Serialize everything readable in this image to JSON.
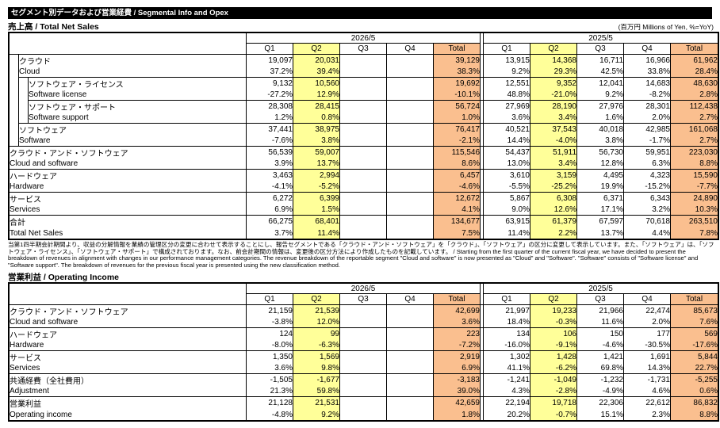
{
  "header": {
    "title_bar": "セグメント別データおよび営業経費 / Segmental Info and Opex",
    "unit_note": "(百万円 Millions of Yen, %=YoY)"
  },
  "colors": {
    "title_bar_bg": "#000000",
    "q2_highlight": "#FFFF99",
    "total_highlight": "#FABF8F",
    "border": "#000000"
  },
  "columns": {
    "year_current": "2026/5",
    "year_prior": "2025/5",
    "quarters": [
      "Q1",
      "Q2",
      "Q3",
      "Q4",
      "Total"
    ]
  },
  "net_sales": {
    "section_title": "売上高 / Total Net Sales",
    "rows": [
      {
        "jp": "クラウド",
        "en": "Cloud",
        "indent": 1,
        "values": [
          "19,097",
          "20,031",
          "",
          "",
          "39,129",
          "13,915",
          "14,368",
          "16,711",
          "16,966",
          "61,962"
        ],
        "yoy": [
          "37.2%",
          "39.4%",
          "",
          "",
          "38.3%",
          "9.2%",
          "29.3%",
          "42.5%",
          "33.8%",
          "28.4%"
        ]
      },
      {
        "jp": "ソフトウェア・ライセンス",
        "en": "Software license",
        "indent": 2,
        "values": [
          "9,132",
          "10,560",
          "",
          "",
          "19,692",
          "12,551",
          "9,352",
          "12,041",
          "14,683",
          "48,630"
        ],
        "yoy": [
          "-27.2%",
          "12.9%",
          "",
          "",
          "-10.1%",
          "48.8%",
          "-21.0%",
          "9.2%",
          "-8.2%",
          "2.8%"
        ]
      },
      {
        "jp": "ソフトウェア・サポート",
        "en": "Software support",
        "indent": 2,
        "values": [
          "28,308",
          "28,415",
          "",
          "",
          "56,724",
          "27,969",
          "28,190",
          "27,976",
          "28,301",
          "112,438"
        ],
        "yoy": [
          "1.2%",
          "0.8%",
          "",
          "",
          "1.0%",
          "3.6%",
          "3.4%",
          "1.6%",
          "2.0%",
          "2.7%"
        ]
      },
      {
        "jp": "ソフトウェア",
        "en": "Software",
        "indent": 1,
        "values": [
          "37,441",
          "38,975",
          "",
          "",
          "76,417",
          "40,521",
          "37,543",
          "40,018",
          "42,985",
          "161,068"
        ],
        "yoy": [
          "-7.6%",
          "3.8%",
          "",
          "",
          "-2.1%",
          "14.4%",
          "-4.0%",
          "3.8%",
          "-1.7%",
          "2.7%"
        ]
      },
      {
        "jp": "クラウド・アンド・ソフトウェア",
        "en": "Cloud and software",
        "indent": 0,
        "values": [
          "56,539",
          "59,007",
          "",
          "",
          "115,546",
          "54,437",
          "51,911",
          "56,730",
          "59,951",
          "223,030"
        ],
        "yoy": [
          "3.9%",
          "13.7%",
          "",
          "",
          "8.6%",
          "13.0%",
          "3.4%",
          "12.8%",
          "6.3%",
          "8.8%"
        ]
      },
      {
        "jp": "ハードウェア",
        "en": "Hardware",
        "indent": 0,
        "values": [
          "3,463",
          "2,994",
          "",
          "",
          "6,457",
          "3,610",
          "3,159",
          "4,495",
          "4,323",
          "15,590"
        ],
        "yoy": [
          "-4.1%",
          "-5.2%",
          "",
          "",
          "-4.6%",
          "-5.5%",
          "-25.2%",
          "19.9%",
          "-15.2%",
          "-7.7%"
        ]
      },
      {
        "jp": "サービス",
        "en": "Services",
        "indent": 0,
        "values": [
          "6,272",
          "6,399",
          "",
          "",
          "12,672",
          "5,867",
          "6,308",
          "6,371",
          "6,343",
          "24,890"
        ],
        "yoy": [
          "6.9%",
          "1.5%",
          "",
          "",
          "4.1%",
          "9.0%",
          "12.6%",
          "17.1%",
          "3.2%",
          "10.3%"
        ]
      },
      {
        "jp": "合計",
        "en": "Total Net Sales",
        "indent": 0,
        "values": [
          "66,275",
          "68,401",
          "",
          "",
          "134,677",
          "63,915",
          "61,379",
          "67,597",
          "70,618",
          "263,510"
        ],
        "yoy": [
          "3.7%",
          "11.4%",
          "",
          "",
          "7.5%",
          "11.4%",
          "2.2%",
          "13.7%",
          "4.4%",
          "7.8%"
        ]
      }
    ]
  },
  "note": {
    "text": "当第1四半期会計期間より、収益の分解情報を業績の管理区分の変更に合わせて表示することにし、報告セグメントである「クラウド・アンド・ソフトウェア」を「クラウド」、「ソフトウェア」の区分に変更して表示しています。また、「ソフトウェア」は、「ソフトウェア・ライセンス」、「ソフトウェア・サポート」で構成されております。なお、前会計期間の情報は、変更後の区分方法により作成したものを記載しています。 / Starting from the first quarter of the current fiscal year, we have decided to present the breakdown of revenues in alignment with changes in our performance management categories. The revenue breakdown of the reportable segment \"Cloud and software\" is now presented as \"Cloud\" and \"Software\". \"Software\" consists of \"Software license\" and \"Software support\". The breakdown of revenues for the previous fiscal year is presented using the new classification method."
  },
  "operating_income": {
    "section_title": "営業利益 / Operating Income",
    "rows": [
      {
        "jp": "クラウド・アンド・ソフトウェア",
        "en": "Cloud and software",
        "indent": 0,
        "values": [
          "21,159",
          "21,539",
          "",
          "",
          "42,699",
          "21,997",
          "19,233",
          "21,966",
          "22,474",
          "85,673"
        ],
        "yoy": [
          "-3.8%",
          "12.0%",
          "",
          "",
          "3.6%",
          "18.4%",
          "-0.3%",
          "11.6%",
          "2.0%",
          "7.6%"
        ]
      },
      {
        "jp": "ハードウェア",
        "en": "Hardware",
        "indent": 0,
        "values": [
          "124",
          "99",
          "",
          "",
          "223",
          "134",
          "106",
          "150",
          "177",
          "569"
        ],
        "yoy": [
          "-8.0%",
          "-6.3%",
          "",
          "",
          "-7.2%",
          "-16.0%",
          "-9.1%",
          "-4.6%",
          "-30.5%",
          "-17.6%"
        ]
      },
      {
        "jp": "サービス",
        "en": "Services",
        "indent": 0,
        "values": [
          "1,350",
          "1,569",
          "",
          "",
          "2,919",
          "1,302",
          "1,428",
          "1,421",
          "1,691",
          "5,844"
        ],
        "yoy": [
          "3.6%",
          "9.8%",
          "",
          "",
          "6.9%",
          "41.1%",
          "-6.2%",
          "69.8%",
          "14.3%",
          "22.7%"
        ]
      },
      {
        "jp": "共通経費（全社費用）",
        "en": "Adjustment",
        "indent": 0,
        "values": [
          "-1,505",
          "-1,677",
          "",
          "",
          "-3,183",
          "-1,241",
          "-1,049",
          "-1,232",
          "-1,731",
          "-5,255"
        ],
        "yoy": [
          "21.3%",
          "59.8%",
          "",
          "",
          "39.0%",
          "4.3%",
          "-2.8%",
          "-4.9%",
          "4.6%",
          "0.6%"
        ]
      },
      {
        "jp": "営業利益",
        "en": "Operating income",
        "indent": 0,
        "values": [
          "21,128",
          "21,531",
          "",
          "",
          "42,659",
          "22,194",
          "19,718",
          "22,306",
          "22,612",
          "86,832"
        ],
        "yoy": [
          "-4.8%",
          "9.2%",
          "",
          "",
          "1.8%",
          "20.2%",
          "-0.7%",
          "15.1%",
          "2.3%",
          "8.8%"
        ]
      }
    ]
  }
}
